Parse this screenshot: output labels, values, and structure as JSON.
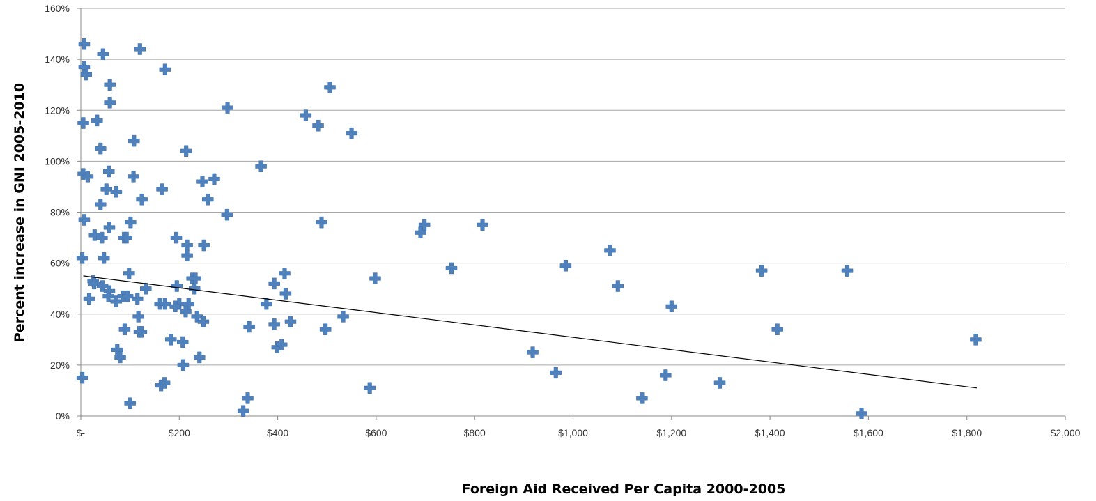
{
  "chart_data": {
    "type": "scatter",
    "title": "",
    "xlabel": "Foreign Aid Received Per Capita 2000-2005",
    "ylabel": "Percent increase in GNI 2005-2010",
    "xlim": [
      0,
      2000
    ],
    "ylim": [
      0,
      160
    ],
    "x_ticks": [
      0,
      200,
      400,
      600,
      800,
      1000,
      1200,
      1400,
      1600,
      1800,
      2000
    ],
    "x_tick_labels": [
      "$-",
      "$200",
      "$400",
      "$600",
      "$800",
      "$1,000",
      "$1,200",
      "$1,400",
      "$1,600",
      "$1,800",
      "$2,000"
    ],
    "y_ticks": [
      0,
      20,
      40,
      60,
      80,
      100,
      120,
      140,
      160
    ],
    "y_tick_labels": [
      "0%",
      "20%",
      "40%",
      "60%",
      "80%",
      "100%",
      "120%",
      "140%",
      "160%"
    ],
    "grid": true,
    "legend": "none",
    "marker_color": "#4f81bd",
    "trendline": {
      "type": "linear",
      "x": [
        5,
        1820
      ],
      "y": [
        55,
        11
      ],
      "color": "#000000"
    },
    "series": [
      {
        "points": [
          [
            7,
            146
          ],
          [
            7,
            137
          ],
          [
            11,
            134
          ],
          [
            5,
            115
          ],
          [
            5,
            95
          ],
          [
            14,
            94
          ],
          [
            7,
            77
          ],
          [
            3,
            62
          ],
          [
            3,
            15
          ],
          [
            45,
            142
          ],
          [
            59,
            130
          ],
          [
            59,
            123
          ],
          [
            33,
            116
          ],
          [
            40,
            105
          ],
          [
            57,
            96
          ],
          [
            52,
            89
          ],
          [
            72,
            88
          ],
          [
            40,
            83
          ],
          [
            58,
            74
          ],
          [
            28,
            71
          ],
          [
            43,
            70
          ],
          [
            47,
            62
          ],
          [
            25,
            53
          ],
          [
            27,
            52
          ],
          [
            44,
            51
          ],
          [
            58,
            49
          ],
          [
            56,
            47
          ],
          [
            17,
            46
          ],
          [
            72,
            45
          ],
          [
            86,
            47
          ],
          [
            120,
            144
          ],
          [
            171,
            136
          ],
          [
            108,
            108
          ],
          [
            107,
            94
          ],
          [
            88,
            70
          ],
          [
            93,
            70
          ],
          [
            101,
            76
          ],
          [
            124,
            85
          ],
          [
            165,
            89
          ],
          [
            98,
            56
          ],
          [
            95,
            47
          ],
          [
            115,
            46
          ],
          [
            132,
            50
          ],
          [
            117,
            39
          ],
          [
            89,
            34
          ],
          [
            119,
            33
          ],
          [
            123,
            33
          ],
          [
            74,
            26
          ],
          [
            80,
            23
          ],
          [
            100,
            5
          ],
          [
            161,
            44
          ],
          [
            171,
            44
          ],
          [
            200,
            44
          ],
          [
            163,
            12
          ],
          [
            170,
            13
          ],
          [
            183,
            30
          ],
          [
            207,
            29
          ],
          [
            208,
            20
          ],
          [
            214,
            104
          ],
          [
            194,
            70
          ],
          [
            216,
            67
          ],
          [
            216,
            63
          ],
          [
            195,
            51
          ],
          [
            226,
            54
          ],
          [
            231,
            50
          ],
          [
            219,
            44
          ],
          [
            213,
            41
          ],
          [
            192,
            43
          ],
          [
            233,
            54
          ],
          [
            236,
            39
          ],
          [
            241,
            23
          ],
          [
            249,
            37
          ],
          [
            250,
            67
          ],
          [
            247,
            92
          ],
          [
            271,
            93
          ],
          [
            258,
            85
          ],
          [
            298,
            121
          ],
          [
            297,
            79
          ],
          [
            366,
            98
          ],
          [
            342,
            35
          ],
          [
            339,
            7
          ],
          [
            330,
            2
          ],
          [
            377,
            44
          ],
          [
            393,
            52
          ],
          [
            393,
            36
          ],
          [
            399,
            27
          ],
          [
            408,
            28
          ],
          [
            414,
            56
          ],
          [
            416,
            48
          ],
          [
            426,
            37
          ],
          [
            457,
            118
          ],
          [
            482,
            114
          ],
          [
            489,
            76
          ],
          [
            497,
            34
          ],
          [
            506,
            129
          ],
          [
            550,
            111
          ],
          [
            533,
            39
          ],
          [
            598,
            54
          ],
          [
            587,
            11
          ],
          [
            690,
            72
          ],
          [
            698,
            75
          ],
          [
            753,
            58
          ],
          [
            816,
            75
          ],
          [
            918,
            25
          ],
          [
            965,
            17
          ],
          [
            985,
            59
          ],
          [
            1075,
            65
          ],
          [
            1091,
            51
          ],
          [
            1140,
            7
          ],
          [
            1188,
            16
          ],
          [
            1200,
            43
          ],
          [
            1298,
            13
          ],
          [
            1383,
            57
          ],
          [
            1415,
            34
          ],
          [
            1557,
            57
          ],
          [
            1586,
            1
          ],
          [
            1818,
            30
          ]
        ]
      }
    ]
  }
}
